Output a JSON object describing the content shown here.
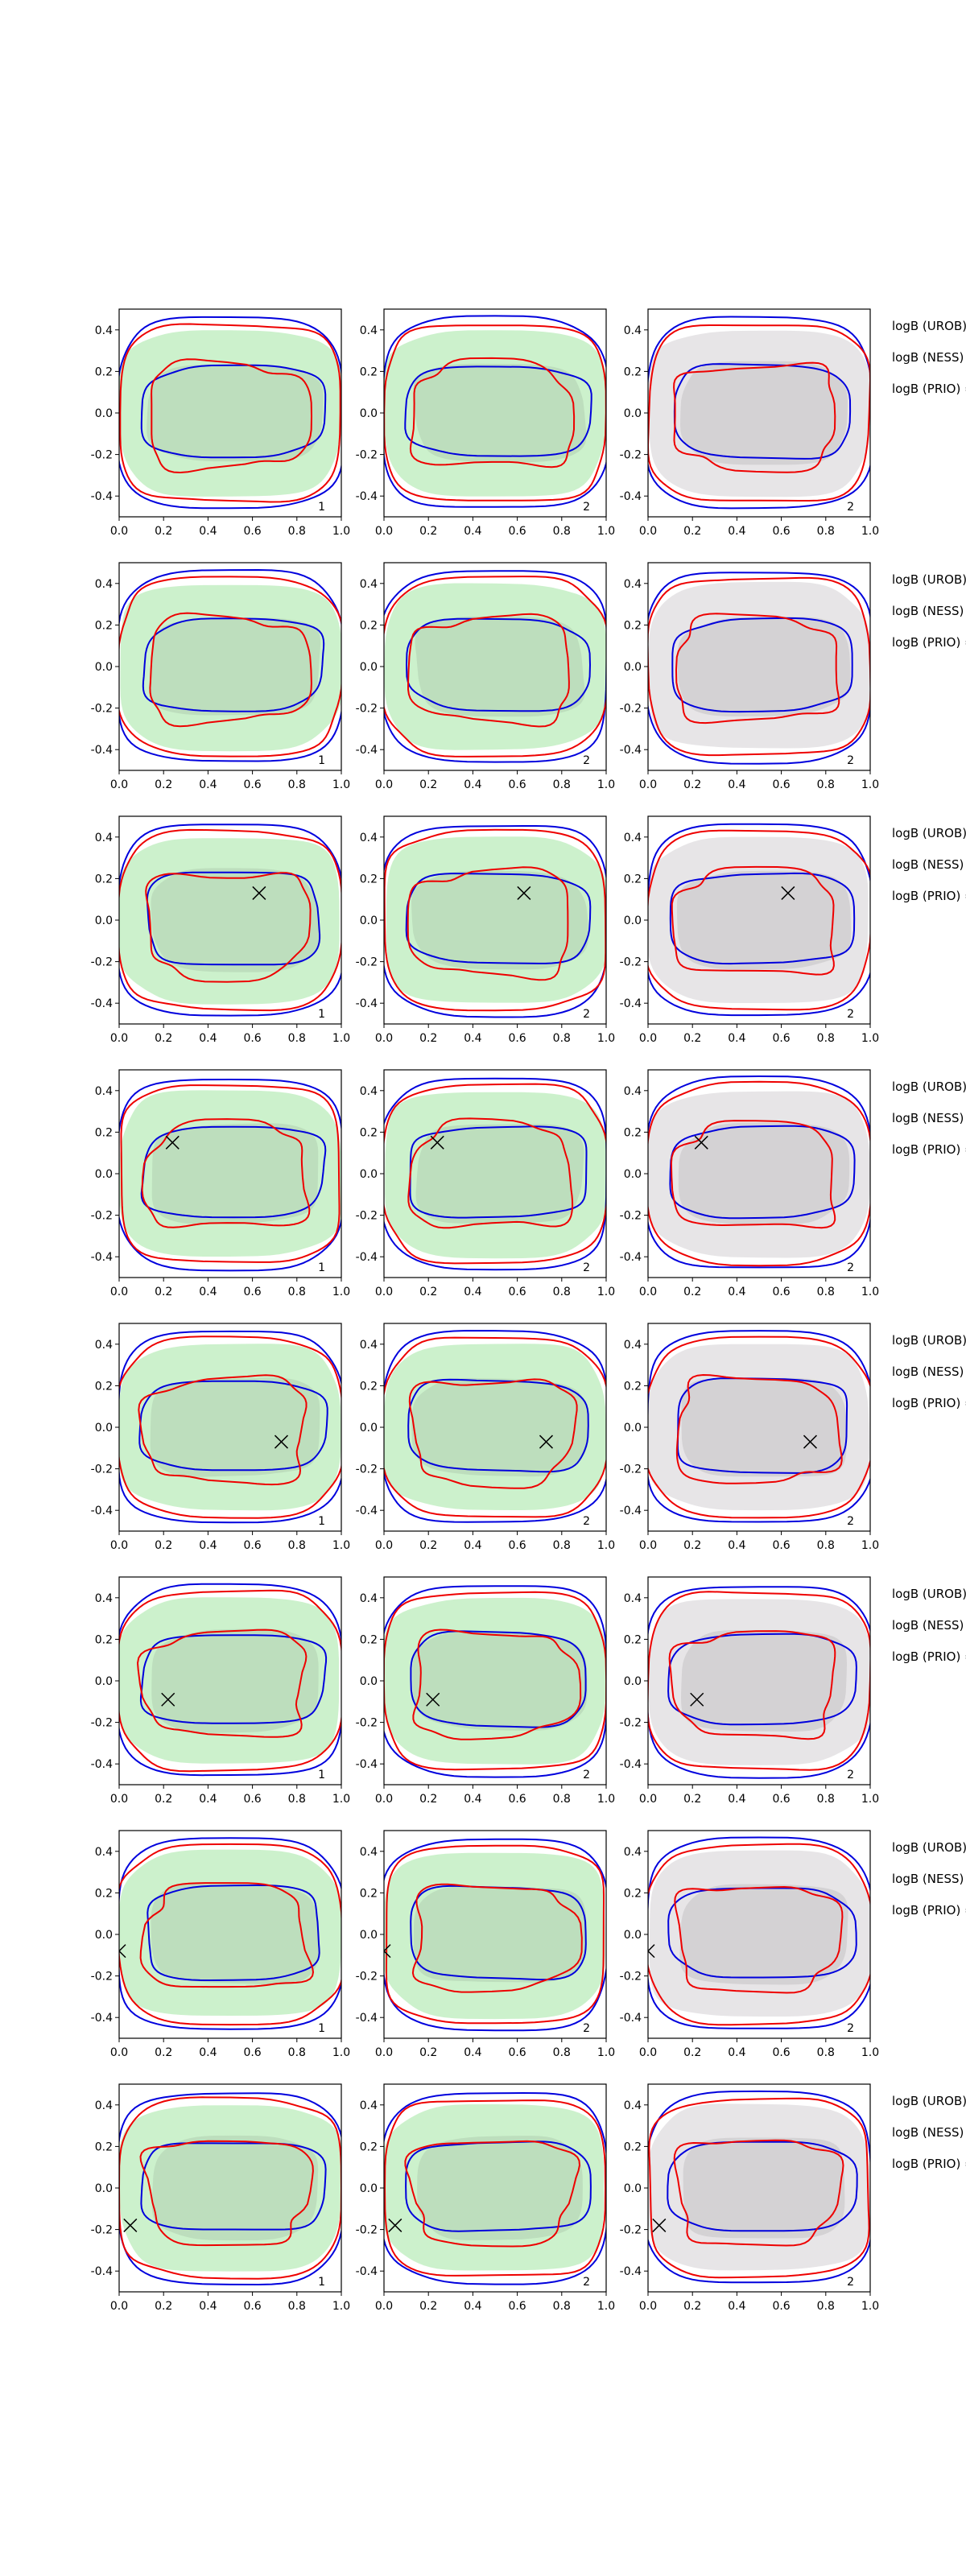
{
  "chart_data": {
    "type": "contour",
    "rows": 8,
    "cols": 3,
    "xlim": [
      0,
      1
    ],
    "ylim": [
      -0.5,
      0.5
    ],
    "xticks": [
      "0.0",
      "0.2",
      "0.4",
      "0.6",
      "0.8",
      "1.0"
    ],
    "yticks": [
      "0.4",
      "0.2",
      "0.0",
      "-0.2",
      "-0.4"
    ],
    "panel_labels": [
      "1",
      "2",
      "2"
    ],
    "side_labels": [
      "logB (UROB) =",
      "logB (NESS) =",
      "logB (PRIO) ="
    ],
    "series_colors": {
      "inner": "#0000dd",
      "contour": "#ee0000",
      "fill_light": "#c8f0c8",
      "fill_gray": "#cccccc"
    },
    "markers": [
      null,
      null,
      [
        0.63,
        0.13
      ],
      [
        0.24,
        0.15
      ],
      [
        0.73,
        -0.07
      ],
      [
        0.22,
        -0.09
      ],
      [
        0.0,
        -0.08
      ],
      [
        0.05,
        -0.18
      ]
    ]
  }
}
